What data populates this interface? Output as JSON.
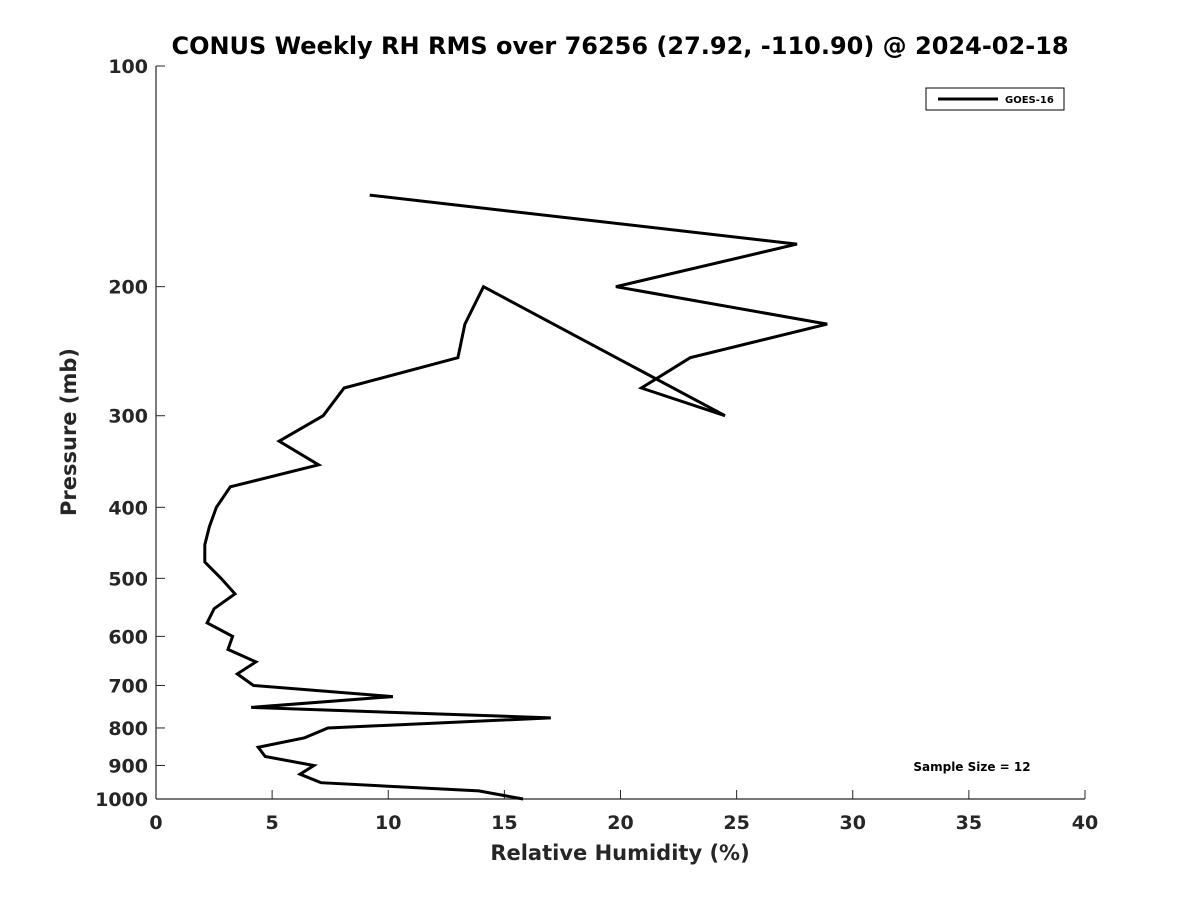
{
  "chart_data": {
    "type": "line",
    "title": "CONUS Weekly RH RMS over 76256 (27.92, -110.90) @ 2024-02-18",
    "xlabel": "Relative Humidity (%)",
    "ylabel": "Pressure (mb)",
    "xlim": [
      0,
      40
    ],
    "ylim": [
      1000,
      100
    ],
    "y_scale": "log",
    "y_direction": "reversed",
    "grid": false,
    "legend_position": "top-right",
    "x_ticks": [
      "0",
      "5",
      "10",
      "15",
      "20",
      "25",
      "30",
      "35",
      "40"
    ],
    "y_ticks": [
      "100",
      "200",
      "300",
      "400",
      "500",
      "600",
      "700",
      "800",
      "900",
      "1000"
    ],
    "annotation": "Sample Size = 12",
    "series": [
      {
        "name": "GOES-16",
        "color": "#000000",
        "points": [
          {
            "x": 15.8,
            "y": 1000
          },
          {
            "x": 13.9,
            "y": 975
          },
          {
            "x": 7.1,
            "y": 950
          },
          {
            "x": 6.2,
            "y": 925
          },
          {
            "x": 6.8,
            "y": 900
          },
          {
            "x": 4.7,
            "y": 875
          },
          {
            "x": 4.4,
            "y": 850
          },
          {
            "x": 6.4,
            "y": 825
          },
          {
            "x": 7.4,
            "y": 800
          },
          {
            "x": 17.0,
            "y": 775
          },
          {
            "x": 4.1,
            "y": 750
          },
          {
            "x": 10.2,
            "y": 725
          },
          {
            "x": 4.2,
            "y": 700
          },
          {
            "x": 3.5,
            "y": 675
          },
          {
            "x": 4.3,
            "y": 650
          },
          {
            "x": 3.1,
            "y": 625
          },
          {
            "x": 3.3,
            "y": 600
          },
          {
            "x": 2.2,
            "y": 575
          },
          {
            "x": 2.5,
            "y": 550
          },
          {
            "x": 3.4,
            "y": 525
          },
          {
            "x": 2.8,
            "y": 500
          },
          {
            "x": 2.1,
            "y": 475
          },
          {
            "x": 2.1,
            "y": 450
          },
          {
            "x": 2.3,
            "y": 425
          },
          {
            "x": 2.6,
            "y": 400
          },
          {
            "x": 3.2,
            "y": 375
          },
          {
            "x": 7.0,
            "y": 350
          },
          {
            "x": 5.3,
            "y": 325
          },
          {
            "x": 7.2,
            "y": 300
          },
          {
            "x": 8.1,
            "y": 275
          },
          {
            "x": 13.0,
            "y": 250
          },
          {
            "x": 13.3,
            "y": 225
          },
          {
            "x": 14.1,
            "y": 200
          },
          {
            "x": 24.5,
            "y": 300
          },
          {
            "x": 20.9,
            "y": 275
          },
          {
            "x": 23.0,
            "y": 250
          },
          {
            "x": 28.9,
            "y": 225
          },
          {
            "x": 19.8,
            "y": 200
          },
          {
            "x": 27.6,
            "y": 175
          },
          {
            "x": 9.2,
            "y": 150
          }
        ]
      }
    ]
  }
}
